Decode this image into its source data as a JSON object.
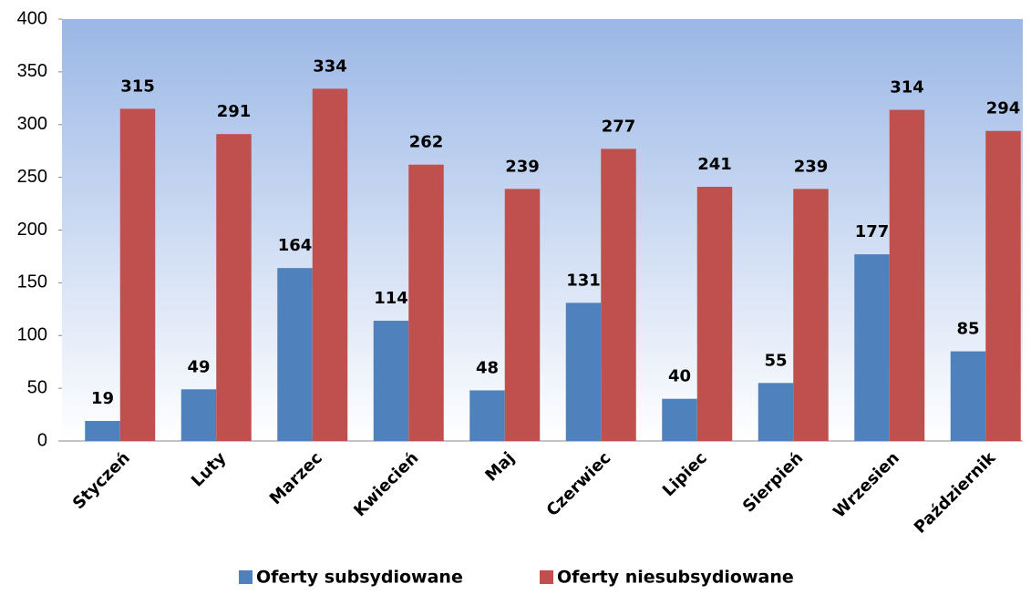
{
  "chart_data": {
    "type": "bar",
    "categories": [
      "Styczeń",
      "Luty",
      "Marzec",
      "Kwiecień",
      "Maj",
      "Czerwiec",
      "Lipiec",
      "Sierpień",
      "Wrzesien",
      "Październik"
    ],
    "series": [
      {
        "name": "Oferty subsydiowane",
        "color": "#4f81bd",
        "values": [
          19,
          49,
          164,
          114,
          48,
          131,
          40,
          55,
          177,
          85
        ]
      },
      {
        "name": "Oferty niesubsydiowane",
        "color": "#c0504d",
        "values": [
          315,
          291,
          334,
          262,
          239,
          277,
          241,
          239,
          314,
          294
        ]
      }
    ],
    "ylim": [
      0,
      400
    ],
    "yticks": [
      0,
      50,
      100,
      150,
      200,
      250,
      300,
      350,
      400
    ]
  }
}
